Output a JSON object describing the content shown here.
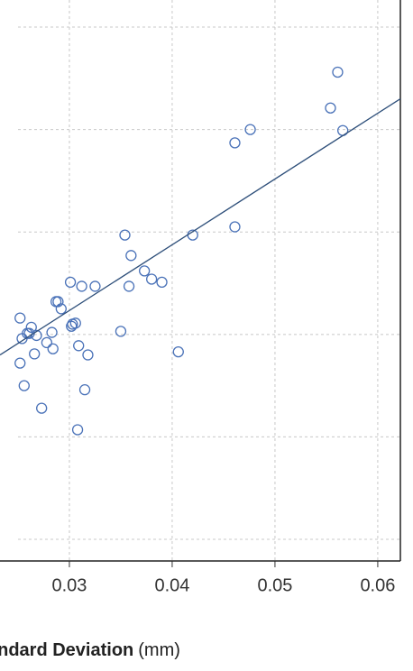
{
  "chart_data": {
    "type": "scatter",
    "x_label": "andard Deviation",
    "x_label_unit": "(mm)",
    "xlim": [
      0.02325,
      0.0622
    ],
    "xticks": [
      0.03,
      0.04,
      0.05,
      0.06
    ],
    "ylim": [
      0.789,
      6.264
    ],
    "yticks": [
      1,
      2,
      3,
      4,
      5,
      6
    ],
    "grid": true,
    "point_color": "#4a72b8",
    "line_color": "#2e4f7a",
    "x": [
      0.0561,
      0.0554,
      0.0566,
      0.0476,
      0.0461,
      0.0461,
      0.042,
      0.0354,
      0.036,
      0.0373,
      0.038,
      0.039,
      0.0358,
      0.0301,
      0.0312,
      0.0325,
      0.0287,
      0.0289,
      0.0292,
      0.0252,
      0.0263,
      0.0261,
      0.0268,
      0.0259,
      0.0283,
      0.0303,
      0.0306,
      0.0302,
      0.035,
      0.0254,
      0.0278,
      0.0266,
      0.0284,
      0.0309,
      0.0318,
      0.0406,
      0.0252,
      0.0256,
      0.0315,
      0.0273,
      0.0308
    ],
    "values": [
      5.56,
      5.21,
      4.99,
      5.0,
      4.87,
      4.05,
      3.97,
      3.97,
      3.77,
      3.62,
      3.54,
      3.51,
      3.47,
      3.51,
      3.47,
      3.47,
      3.32,
      3.32,
      3.25,
      3.16,
      3.07,
      3.01,
      2.99,
      3.01,
      3.02,
      3.1,
      3.11,
      3.08,
      3.03,
      2.96,
      2.92,
      2.81,
      2.86,
      2.89,
      2.8,
      2.83,
      2.72,
      2.5,
      2.46,
      2.28,
      2.07
    ],
    "fit_line": {
      "x": [
        0.02325,
        0.0622
      ],
      "values": [
        2.8,
        5.3
      ]
    }
  }
}
